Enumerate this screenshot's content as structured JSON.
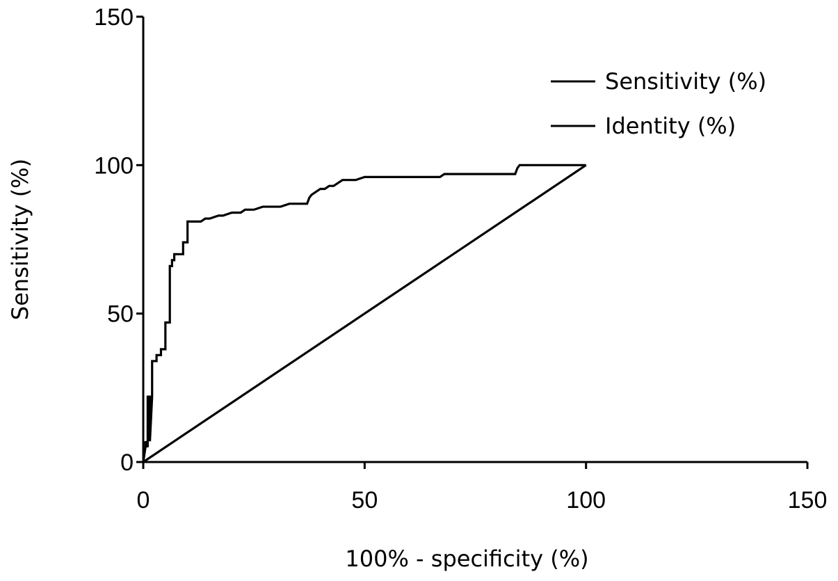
{
  "chart_data": {
    "type": "line",
    "title": "",
    "xlabel": "100% - specificity (%)",
    "ylabel": "Sensitivity (%)",
    "xlim": [
      0,
      150
    ],
    "ylim": [
      0,
      150
    ],
    "x_ticks": [
      0,
      50,
      100,
      150
    ],
    "y_ticks": [
      0,
      50,
      100,
      150
    ],
    "grid": false,
    "legend_position": "top-right",
    "series": [
      {
        "name": "Sensitivity (%)",
        "step": true,
        "x": [
          0,
          0.5,
          0.5,
          1,
          1,
          1.5,
          1.5,
          2,
          2,
          3,
          3,
          4,
          4,
          5,
          5,
          6,
          6,
          6.5,
          6.5,
          7,
          7,
          8,
          8,
          9,
          9,
          10,
          10,
          13,
          14,
          15,
          17,
          18,
          20,
          22,
          23,
          25,
          27,
          29,
          31,
          33,
          35,
          37,
          37.5,
          38,
          39,
          40,
          41,
          42,
          43,
          44,
          45,
          48,
          50,
          55,
          60,
          67,
          68,
          75,
          82,
          84,
          84.5,
          85,
          90,
          95,
          100
        ],
        "y": [
          0,
          5,
          7,
          5,
          22,
          22,
          7,
          22,
          34,
          34,
          36,
          36,
          38,
          38,
          47,
          47,
          66,
          66,
          68,
          68,
          70,
          70,
          70,
          70,
          74,
          74,
          81,
          81,
          82,
          82,
          83,
          83,
          84,
          84,
          85,
          85,
          86,
          86,
          86,
          87,
          87,
          87,
          89,
          90,
          91,
          92,
          92,
          93,
          93,
          94,
          95,
          95,
          96,
          96,
          96,
          96,
          97,
          97,
          97,
          97,
          99,
          100,
          100,
          100,
          100
        ]
      },
      {
        "name": "Identity (%)",
        "step": false,
        "x": [
          0,
          100
        ],
        "y": [
          0,
          100
        ]
      }
    ]
  }
}
